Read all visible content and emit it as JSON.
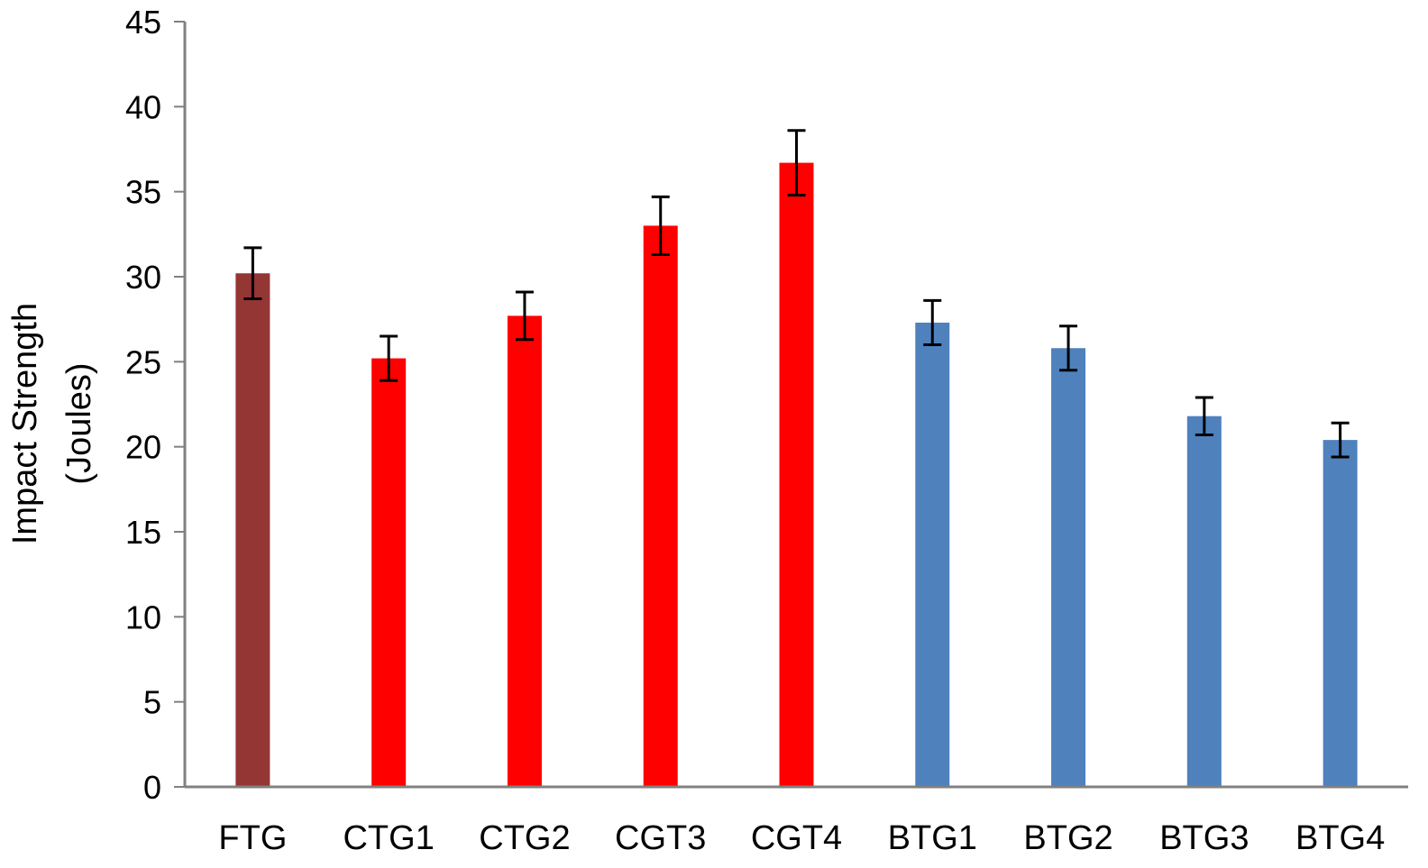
{
  "chart_data": {
    "type": "bar",
    "categories": [
      "FTG",
      "CTG1",
      "CTG2",
      "CGT3",
      "CGT4",
      "BTG1",
      "BTG2",
      "BTG3",
      "BTG4"
    ],
    "values": [
      30.2,
      25.2,
      27.7,
      33.0,
      36.7,
      27.3,
      25.8,
      21.8,
      20.4
    ],
    "errors": [
      1.5,
      1.3,
      1.4,
      1.7,
      1.9,
      1.3,
      1.3,
      1.1,
      1.0
    ],
    "colors": [
      "#943634",
      "#ff0000",
      "#ff0000",
      "#ff0000",
      "#ff0000",
      "#4f81bd",
      "#4f81bd",
      "#4f81bd",
      "#4f81bd"
    ],
    "title": "",
    "xlabel": "",
    "ylabel_line1": "Impact Strength",
    "ylabel_line2": "(Joules)",
    "ylim": [
      0,
      45
    ],
    "yticks": [
      0,
      5,
      10,
      15,
      20,
      25,
      30,
      35,
      40,
      45
    ],
    "ytick_labels": [
      "0",
      "5",
      "10",
      "15",
      "20",
      "25",
      "30",
      "35",
      "40",
      "45"
    ],
    "grid": false,
    "legend": "none"
  }
}
